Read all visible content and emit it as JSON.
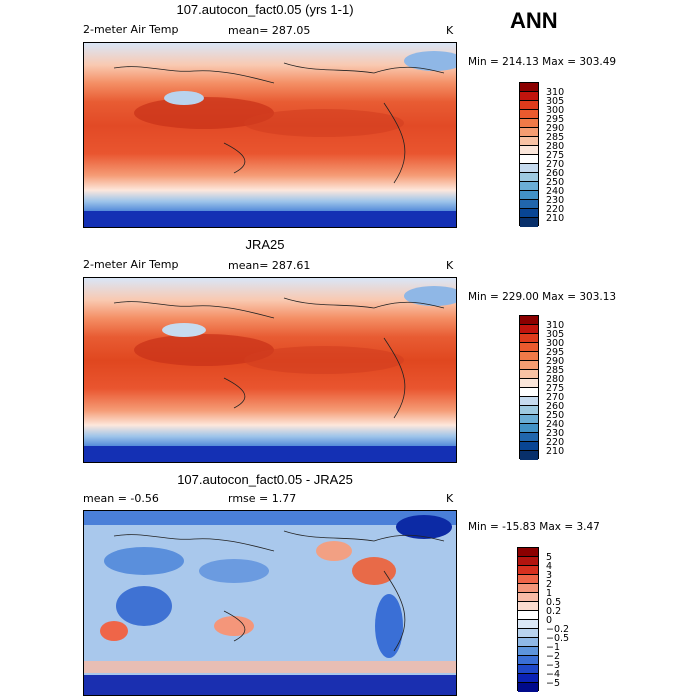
{
  "season": "ANN",
  "panels": [
    {
      "title": "107.autocon_fact0.05 (yrs 1-1)",
      "left_label": "2-meter Air Temp",
      "stat1": "mean= 287.05",
      "stat2": "",
      "units": "K",
      "minmax": "Min = 214.13 Max = 303.49",
      "colorbar_labels": [
        "310",
        "305",
        "300",
        "295",
        "290",
        "285",
        "280",
        "275",
        "270",
        "260",
        "250",
        "240",
        "230",
        "220",
        "210"
      ],
      "colorbar_colors": [
        "#8b0000",
        "#c1140d",
        "#de3b1c",
        "#ea5a2e",
        "#f07a48",
        "#f59d72",
        "#f8c2a4",
        "#fbe6da",
        "#ffffff",
        "#c6dbef",
        "#9ecae1",
        "#6baed6",
        "#4292c6",
        "#2166ac",
        "#084594",
        "#08306b"
      ]
    },
    {
      "title": "JRA25",
      "left_label": "2-meter Air Temp",
      "stat1": "mean= 287.61",
      "stat2": "",
      "units": "K",
      "minmax": "Min = 229.00 Max = 303.13",
      "colorbar_labels": [
        "310",
        "305",
        "300",
        "295",
        "290",
        "285",
        "280",
        "275",
        "270",
        "260",
        "250",
        "240",
        "230",
        "220",
        "210"
      ],
      "colorbar_colors": [
        "#8b0000",
        "#c1140d",
        "#de3b1c",
        "#ea5a2e",
        "#f07a48",
        "#f59d72",
        "#f8c2a4",
        "#fbe6da",
        "#ffffff",
        "#c6dbef",
        "#9ecae1",
        "#6baed6",
        "#4292c6",
        "#2166ac",
        "#084594",
        "#08306b"
      ]
    },
    {
      "title": "107.autocon_fact0.05 - JRA25",
      "left_label": "mean =  -0.56",
      "stat1": "rmse =   1.77",
      "stat2": "",
      "units": "K",
      "minmax": "Min = -15.83 Max =   3.47",
      "colorbar_labels": [
        "5",
        "4",
        "3",
        "2",
        "1",
        "0.5",
        "0.2",
        "0",
        "−0.2",
        "−0.5",
        "−1",
        "−2",
        "−3",
        "−4",
        "−5"
      ],
      "colorbar_colors": [
        "#8b0000",
        "#b3140f",
        "#d7301f",
        "#ef6548",
        "#f4967a",
        "#f8bba6",
        "#fbdccf",
        "#ffffff",
        "#dbe8f6",
        "#b9d3ee",
        "#8fb8e6",
        "#5d94dc",
        "#3a6fd6",
        "#1f48c9",
        "#0b22b5",
        "#000a8b"
      ]
    }
  ]
}
